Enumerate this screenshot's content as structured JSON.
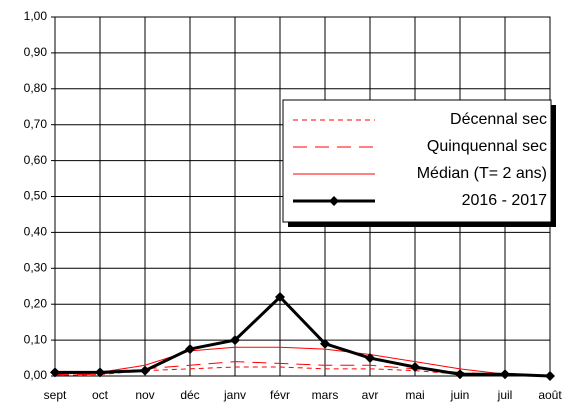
{
  "chart_data": {
    "type": "line",
    "categories": [
      "sept",
      "oct",
      "nov",
      "déc",
      "janv",
      "févr",
      "mars",
      "avr",
      "mai",
      "juin",
      "juil",
      "août"
    ],
    "ylim": [
      0,
      1
    ],
    "yticks": [
      {
        "value": 0,
        "label": "0,00"
      },
      {
        "value": 0.1,
        "label": "0,10"
      },
      {
        "value": 0.2,
        "label": "0,20"
      },
      {
        "value": 0.3,
        "label": "0,30"
      },
      {
        "value": 0.4,
        "label": "0,40"
      },
      {
        "value": 0.5,
        "label": "0,50"
      },
      {
        "value": 0.6,
        "label": "0,60"
      },
      {
        "value": 0.7,
        "label": "0,70"
      },
      {
        "value": 0.8,
        "label": "0,80"
      },
      {
        "value": 0.9,
        "label": "0,90"
      },
      {
        "value": 1,
        "label": "1,00"
      }
    ],
    "grid": true,
    "series": [
      {
        "name": "Décennal sec",
        "color": "#ff0000",
        "dash": "short",
        "values": [
          0.002,
          0.004,
          0.015,
          0.02,
          0.025,
          0.025,
          0.02,
          0.02,
          0.015,
          0.005,
          0.002,
          0
        ]
      },
      {
        "name": "Quinquennal sec",
        "color": "#ff0000",
        "dash": "long",
        "values": [
          0.003,
          0.005,
          0.02,
          0.03,
          0.04,
          0.035,
          0.03,
          0.03,
          0.02,
          0.01,
          0.003,
          0
        ]
      },
      {
        "name": "Médian (T= 2 ans)",
        "color": "#ff0000",
        "dash": "solid",
        "values": [
          0.005,
          0.01,
          0.03,
          0.07,
          0.08,
          0.08,
          0.075,
          0.06,
          0.04,
          0.02,
          0.005,
          0
        ]
      },
      {
        "name": "2016 - 2017",
        "color": "#000000",
        "dash": "solid",
        "marker": "diamond",
        "bold": true,
        "values": [
          0.01,
          0.01,
          0.015,
          0.075,
          0.1,
          0.22,
          0.09,
          0.05,
          0.025,
          0.005,
          0.005,
          0
        ]
      }
    ]
  }
}
